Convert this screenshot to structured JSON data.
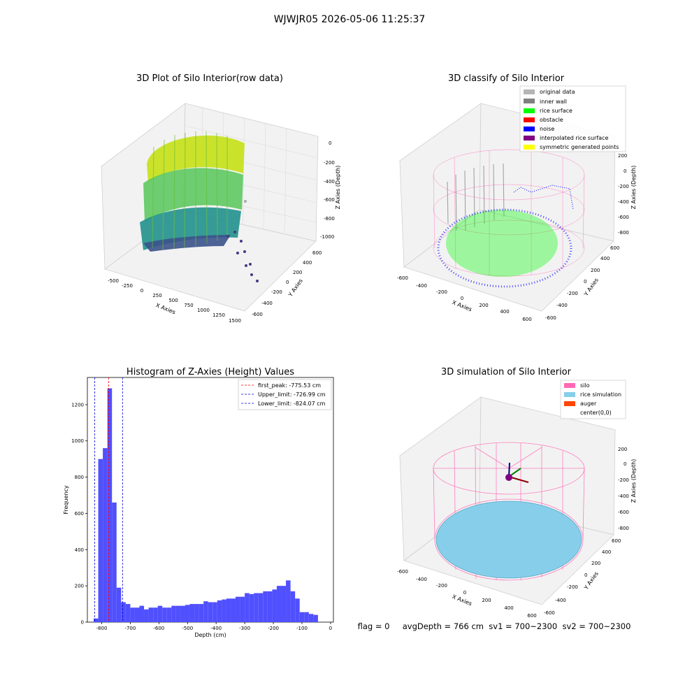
{
  "suptitle": "WJWJR05 2026-05-06 11:25:37",
  "panel_3d_raw": {
    "title": "3D Plot of Silo Interior(row data)",
    "xlabel": "X Axies",
    "ylabel": "Y Axies",
    "zlabel": "Z Axies (Depth)",
    "xticks": [
      "-500",
      "-250",
      "0",
      "250",
      "500",
      "750",
      "1000",
      "1250",
      "1500"
    ],
    "yticks": [
      "600",
      "400",
      "200",
      "0",
      "-200",
      "-400",
      "-600"
    ],
    "zticks": [
      "0",
      "-200",
      "-400",
      "-600",
      "-800",
      "-1000"
    ],
    "colormap": "viridis"
  },
  "panel_3d_classify": {
    "title": "3D classify of Silo Interior",
    "xlabel": "X Axies",
    "ylabel": "Y Axies",
    "zlabel": "Z Axies (Depth)",
    "xticks": [
      "-600",
      "-400",
      "-200",
      "0",
      "200",
      "400",
      "600"
    ],
    "yticks": [
      "600",
      "400",
      "200",
      "0",
      "-200",
      "-400",
      "-600"
    ],
    "zticks": [
      "200",
      "0",
      "-200",
      "-400",
      "-600",
      "-800"
    ],
    "legend": [
      {
        "label": "original data",
        "color": "#b5b5b5"
      },
      {
        "label": "inner wall",
        "color": "#808080"
      },
      {
        "label": "rice surface",
        "color": "#00ff00"
      },
      {
        "label": "obstacle",
        "color": "#ff0000"
      },
      {
        "label": "noise",
        "color": "#0000ff"
      },
      {
        "label": "interpolated rice surface",
        "color": "#800080"
      },
      {
        "label": "symmetric generated points",
        "color": "#ffff00"
      }
    ]
  },
  "panel_3d_sim": {
    "title": "3D simulation of Silo Interior",
    "xlabel": "X Axies",
    "ylabel": "Y Axies",
    "zlabel": "Z Axies (Depth)",
    "xticks": [
      "-600",
      "-400",
      "-200",
      "0",
      "200",
      "400",
      "600"
    ],
    "yticks": [
      "600",
      "400",
      "200",
      "0",
      "-200",
      "-400",
      "-600"
    ],
    "zticks": [
      "200",
      "0",
      "-200",
      "-400",
      "-600",
      "-800"
    ],
    "legend": [
      {
        "label": "silo",
        "color": "#ff69b4"
      },
      {
        "label": "rice simulation",
        "color": "#87ceeb"
      },
      {
        "label": "auger",
        "color": "#ff4500"
      },
      {
        "label": "center(0,0)",
        "color": "#ffffff"
      }
    ]
  },
  "status_line": "flag = 0     avgDepth = 766 cm  sv1 = 700~2300  sv2 = 700~2300",
  "chart_data": {
    "type": "bar",
    "title": "Histogram of Z-Axies (Height) Values",
    "xlabel": "Depth (cm)",
    "ylabel": "Frequency",
    "xlim": [
      -850,
      10
    ],
    "ylim": [
      0,
      1350
    ],
    "bar_color": "#5050ff",
    "bin_start": -828,
    "bin_width": 16,
    "values": [
      20,
      900,
      960,
      1290,
      660,
      190,
      110,
      100,
      80,
      80,
      90,
      70,
      80,
      80,
      90,
      80,
      80,
      90,
      90,
      90,
      95,
      100,
      100,
      100,
      115,
      110,
      110,
      120,
      125,
      130,
      130,
      140,
      140,
      160,
      155,
      160,
      160,
      170,
      170,
      180,
      200,
      200,
      230,
      170,
      130,
      55,
      55,
      45,
      40
    ],
    "xticks": [
      -800,
      -700,
      -600,
      -500,
      -400,
      -300,
      -200,
      -100,
      0
    ],
    "yticks": [
      0,
      200,
      400,
      600,
      800,
      1000,
      1200
    ],
    "vlines": [
      {
        "label": "first_peak: -775.53 cm",
        "x": -775.53,
        "color": "#ff0000"
      },
      {
        "label": "Upper_limit: -726.99 cm",
        "x": -726.99,
        "color": "#0000cc"
      },
      {
        "label": "Lower_limit: -824.07 cm",
        "x": -824.07,
        "color": "#0000cc"
      }
    ]
  }
}
